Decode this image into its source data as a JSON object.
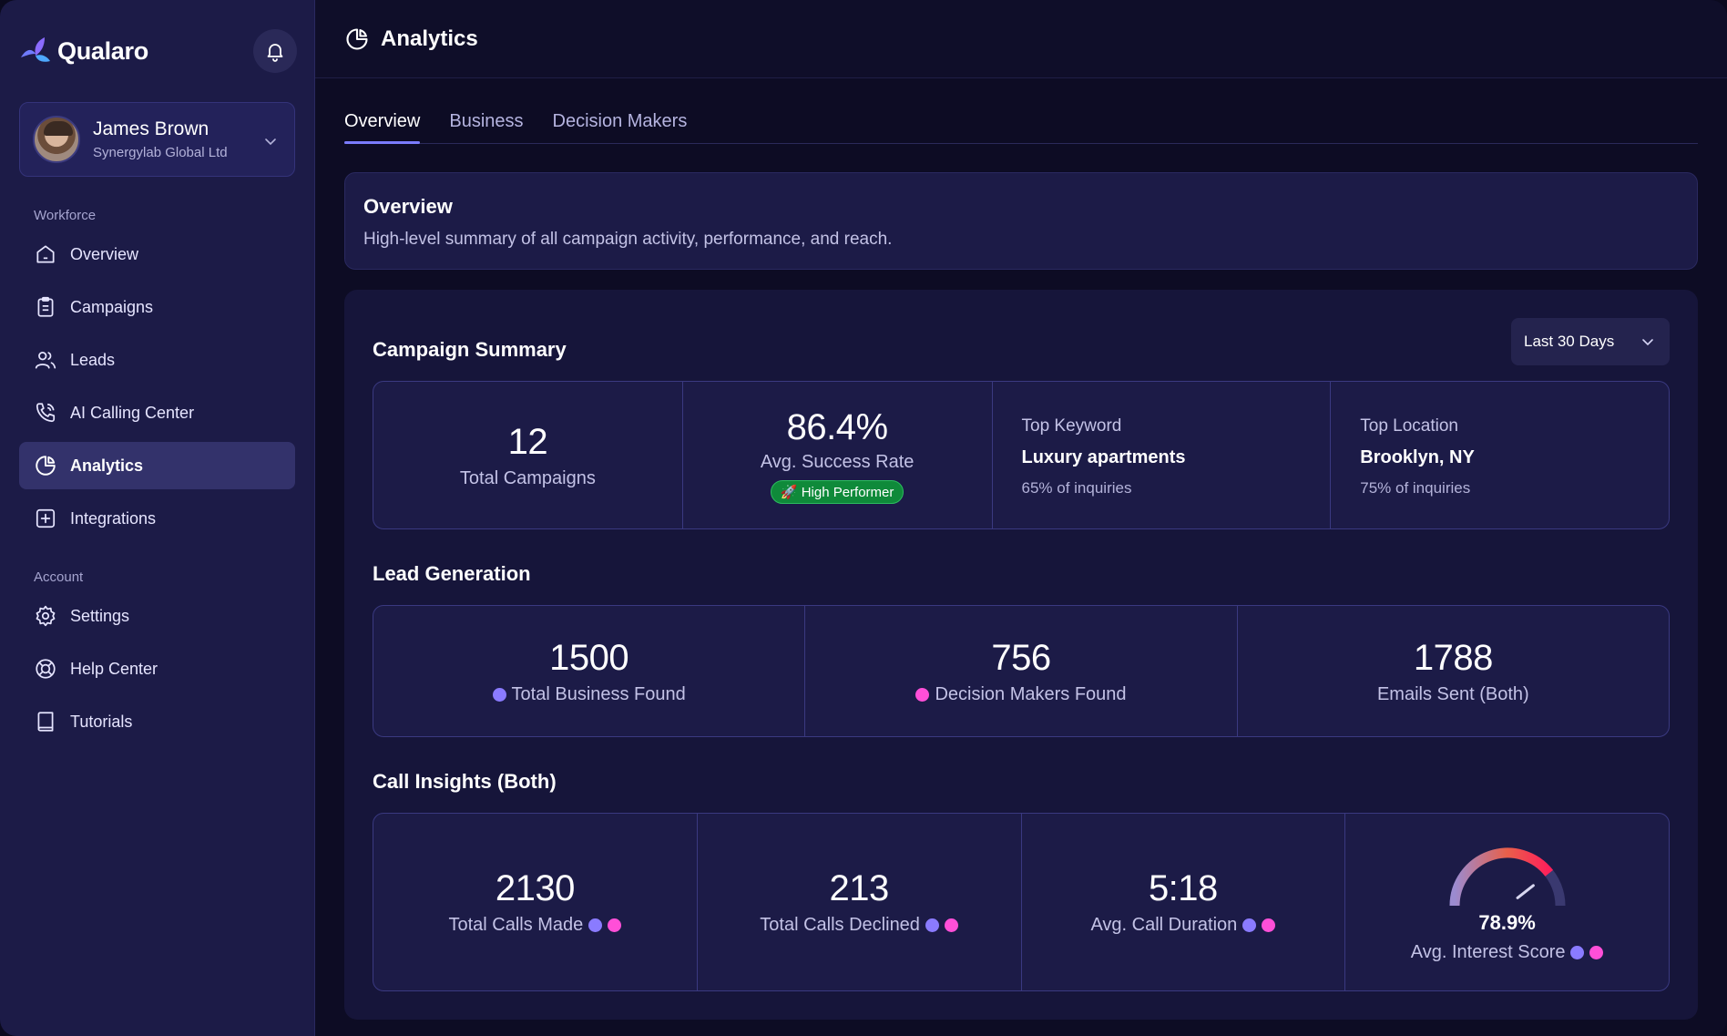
{
  "brand": {
    "name": "Qualaro"
  },
  "user": {
    "name": "James Brown",
    "company": "Synergylab Global Ltd"
  },
  "sidebar": {
    "workforce_label": "Workforce",
    "account_label": "Account",
    "workforce_items": [
      {
        "label": "Overview",
        "icon": "home-icon"
      },
      {
        "label": "Campaigns",
        "icon": "clipboard-icon"
      },
      {
        "label": "Leads",
        "icon": "users-icon"
      },
      {
        "label": "AI Calling Center",
        "icon": "phone-icon"
      },
      {
        "label": "Analytics",
        "icon": "pie-chart-icon",
        "active": true
      },
      {
        "label": "Integrations",
        "icon": "plus-square-icon"
      }
    ],
    "account_items": [
      {
        "label": "Settings",
        "icon": "gear-icon"
      },
      {
        "label": "Help Center",
        "icon": "lifebuoy-icon"
      },
      {
        "label": "Tutorials",
        "icon": "book-icon"
      }
    ]
  },
  "header": {
    "title": "Analytics"
  },
  "tabs": [
    {
      "label": "Overview",
      "active": true
    },
    {
      "label": "Business"
    },
    {
      "label": "Decision Makers"
    }
  ],
  "overview": {
    "title": "Overview",
    "subtitle": "High-level summary of all campaign activity, performance, and reach."
  },
  "campaign_summary": {
    "title": "Campaign Summary",
    "range": "Last 30 Days",
    "total_campaigns": {
      "value": "12",
      "label": "Total Campaigns"
    },
    "success_rate": {
      "value": "86.4%",
      "label": "Avg. Success Rate",
      "badge": "🚀 High Performer"
    },
    "top_keyword": {
      "heading": "Top Keyword",
      "value": "Luxury apartments",
      "sub": "65% of inquiries"
    },
    "top_location": {
      "heading": "Top Location",
      "value": "Brooklyn, NY",
      "sub": "75% of inquiries"
    }
  },
  "lead_generation": {
    "title": "Lead Generation",
    "business": {
      "value": "1500",
      "label": "Total Business Found"
    },
    "decision_makers": {
      "value": "756",
      "label": "Decision Makers Found"
    },
    "emails": {
      "value": "1788",
      "label": "Emails Sent (Both)"
    }
  },
  "call_insights": {
    "title": "Call Insights (Both)",
    "calls_made": {
      "value": "2130",
      "label": "Total Calls Made"
    },
    "calls_declined": {
      "value": "213",
      "label": "Total Calls Declined"
    },
    "call_duration": {
      "value": "5:18",
      "label": "Avg. Call Duration"
    },
    "interest_score": {
      "value": "78.9%",
      "label": "Avg. Interest Score",
      "fraction": 0.789
    }
  },
  "colors": {
    "accent": "#7b7cff",
    "dot_purple": "#8a7bff",
    "dot_pink": "#ff4fd8",
    "badge_green": "#0f8a3a"
  }
}
